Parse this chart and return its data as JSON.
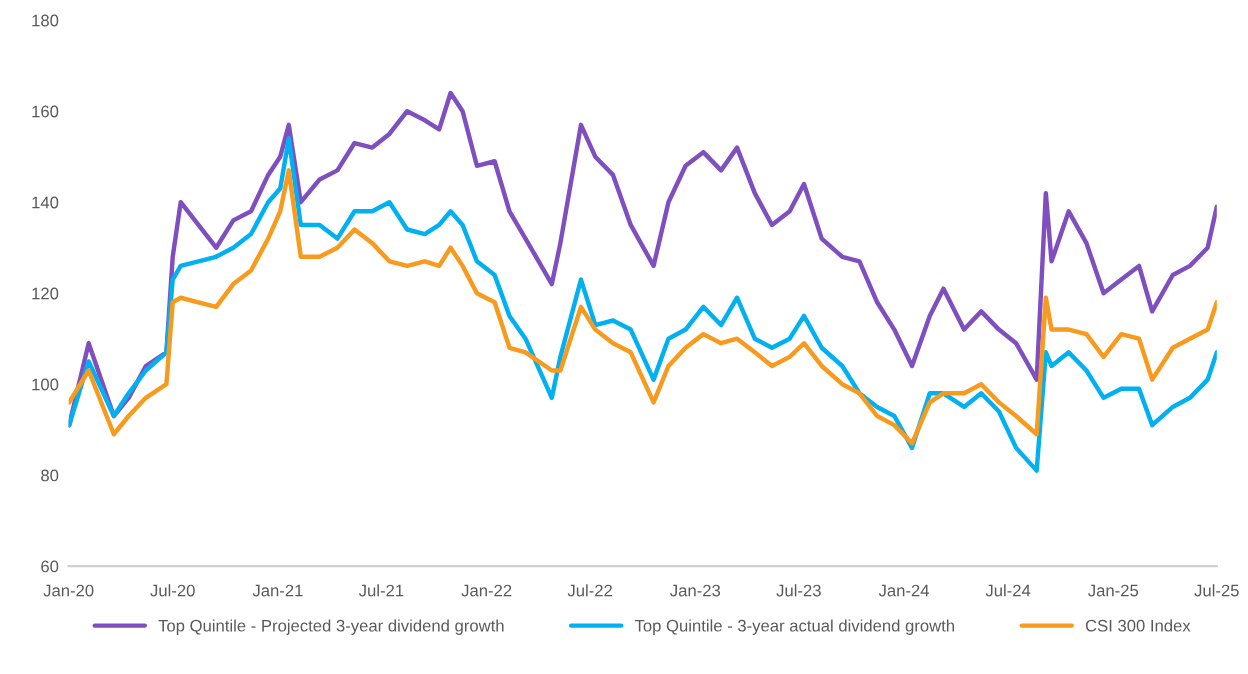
{
  "chart_data": {
    "type": "line",
    "x": [
      "2020-01-02",
      "2020-02-05",
      "2020-03-20",
      "2020-04-15",
      "2020-05-15",
      "2020-06-20",
      "2020-07-01",
      "2020-07-15",
      "2020-08-15",
      "2020-09-15",
      "2020-10-15",
      "2020-11-15",
      "2020-12-15",
      "2021-01-05",
      "2021-01-20",
      "2021-02-10",
      "2021-03-15",
      "2021-04-15",
      "2021-05-15",
      "2021-06-15",
      "2021-07-15",
      "2021-08-15",
      "2021-09-15",
      "2021-10-10",
      "2021-10-30",
      "2021-11-20",
      "2021-12-15",
      "2022-01-15",
      "2022-02-10",
      "2022-03-10",
      "2022-04-25",
      "2022-05-10",
      "2022-06-15",
      "2022-07-10",
      "2022-08-10",
      "2022-09-10",
      "2022-10-20",
      "2022-11-15",
      "2022-12-15",
      "2023-01-15",
      "2023-02-15",
      "2023-03-15",
      "2023-04-15",
      "2023-05-15",
      "2023-06-15",
      "2023-07-10",
      "2023-08-10",
      "2023-09-15",
      "2023-10-15",
      "2023-11-15",
      "2023-12-15",
      "2024-01-15",
      "2024-02-15",
      "2024-03-10",
      "2024-04-15",
      "2024-05-15",
      "2024-06-15",
      "2024-07-15",
      "2024-08-20",
      "2024-09-05",
      "2024-09-15",
      "2024-10-15",
      "2024-11-15",
      "2024-12-15",
      "2025-01-15",
      "2025-02-15",
      "2025-03-10",
      "2025-04-15",
      "2025-05-15",
      "2025-06-15",
      "2025-07-01"
    ],
    "series": [
      {
        "name": "Top Quintile - Projected 3-year dividend growth",
        "color": "#7f4fbf",
        "values": [
          91,
          109,
          93,
          97,
          104,
          107,
          128,
          140,
          135,
          130,
          136,
          138,
          146,
          150,
          157,
          140,
          145,
          147,
          153,
          152,
          155,
          160,
          158,
          156,
          164,
          160,
          148,
          149,
          138,
          132,
          122,
          131,
          157,
          150,
          146,
          135,
          126,
          140,
          148,
          151,
          147,
          152,
          142,
          135,
          138,
          144,
          132,
          128,
          127,
          118,
          112,
          104,
          115,
          121,
          112,
          116,
          112,
          109,
          101,
          142,
          127,
          138,
          131,
          120,
          123,
          126,
          116,
          124,
          126,
          130,
          139
        ]
      },
      {
        "name": "Top Quintile - 3-year actual dividend growth",
        "color": "#00b0f0",
        "values": [
          91,
          105,
          93,
          98,
          103,
          107,
          123,
          126,
          127,
          128,
          130,
          133,
          140,
          143,
          154,
          135,
          135,
          132,
          138,
          138,
          140,
          134,
          133,
          135,
          138,
          135,
          127,
          124,
          115,
          110,
          97,
          106,
          123,
          113,
          114,
          112,
          101,
          110,
          112,
          117,
          113,
          119,
          110,
          108,
          110,
          115,
          108,
          104,
          98,
          95,
          93,
          86,
          98,
          98,
          95,
          98,
          94,
          86,
          81,
          107,
          104,
          107,
          103,
          97,
          99,
          99,
          91,
          95,
          97,
          101,
          107
        ]
      },
      {
        "name": "CSI 300 Index",
        "color": "#f79a1e",
        "values": [
          96,
          103,
          89,
          93,
          97,
          100,
          118,
          119,
          118,
          117,
          122,
          125,
          132,
          138,
          147,
          128,
          128,
          130,
          134,
          131,
          127,
          126,
          127,
          126,
          130,
          126,
          120,
          118,
          108,
          107,
          103,
          103,
          117,
          112,
          109,
          107,
          96,
          104,
          108,
          111,
          109,
          110,
          107,
          104,
          106,
          109,
          104,
          100,
          98,
          93,
          91,
          87,
          96,
          98,
          98,
          100,
          96,
          93,
          89,
          119,
          112,
          112,
          111,
          106,
          111,
          110,
          101,
          108,
          110,
          112,
          118
        ]
      }
    ],
    "xlim": [
      "2020-01-01",
      "2025-07-01"
    ],
    "xticks": [
      {
        "value": "2020-01-01",
        "label": "Jan-20"
      },
      {
        "value": "2020-07-01",
        "label": "Jul-20"
      },
      {
        "value": "2021-01-01",
        "label": "Jan-21"
      },
      {
        "value": "2021-07-01",
        "label": "Jul-21"
      },
      {
        "value": "2022-01-01",
        "label": "Jan-22"
      },
      {
        "value": "2022-07-01",
        "label": "Jul-22"
      },
      {
        "value": "2023-01-01",
        "label": "Jan-23"
      },
      {
        "value": "2023-07-01",
        "label": "Jul-23"
      },
      {
        "value": "2024-01-01",
        "label": "Jan-24"
      },
      {
        "value": "2024-07-01",
        "label": "Jul-24"
      },
      {
        "value": "2025-01-01",
        "label": "Jan-25"
      },
      {
        "value": "2025-07-01",
        "label": "Jul-25"
      }
    ],
    "ylim": [
      60,
      180
    ],
    "yticks": [
      60,
      80,
      100,
      120,
      140,
      160,
      180
    ],
    "grid": false,
    "legend": "bottom",
    "line_style": "solid",
    "marker": "none"
  }
}
